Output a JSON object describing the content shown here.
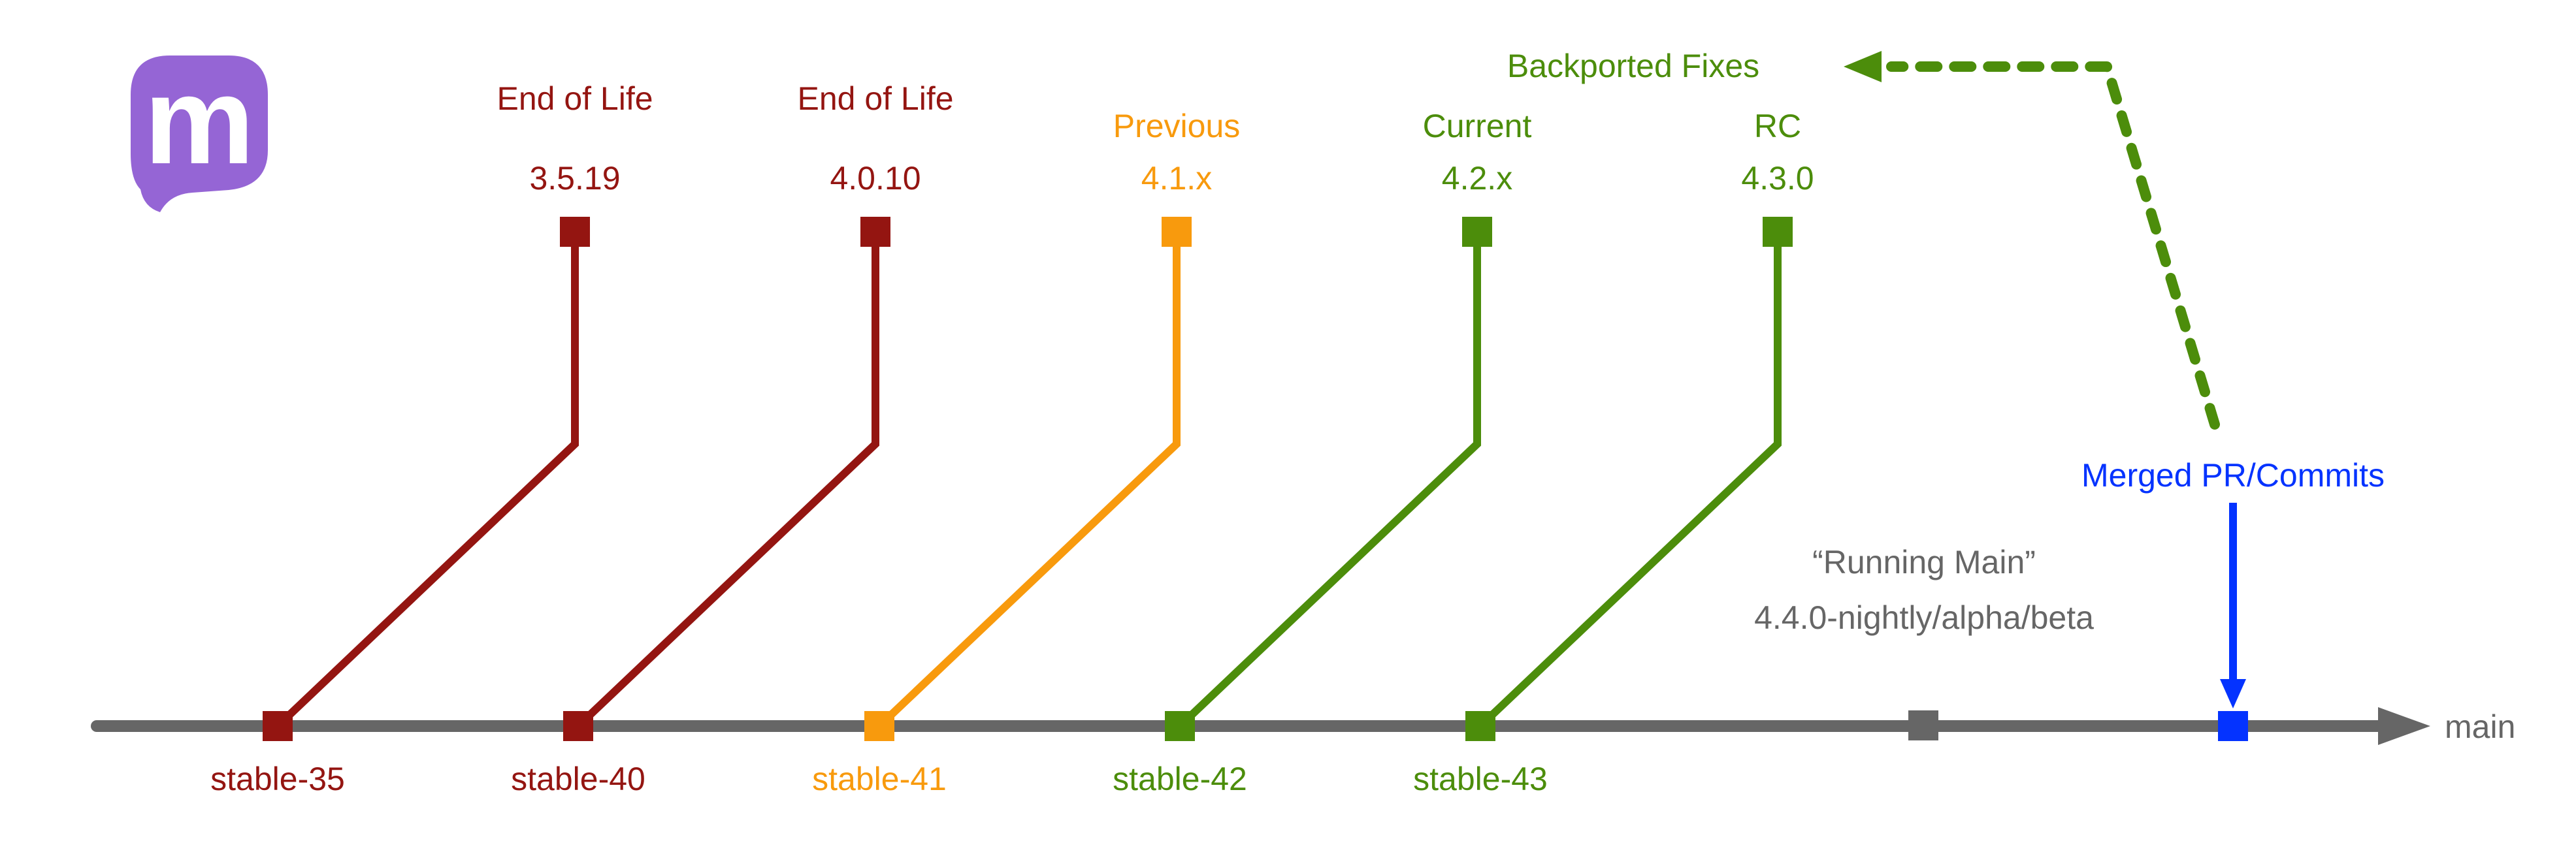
{
  "colors": {
    "eol": "#941511",
    "previous": "#F89A0D",
    "current": "#4C8D0B",
    "merged": "#0433FF",
    "main_line": "#666666",
    "nightly_text": "#666666",
    "logo": "#9565D5"
  },
  "logo": {
    "icon": "mastodon-logo-icon",
    "glyph": "m"
  },
  "main_branch": {
    "label": "main"
  },
  "branches": [
    {
      "id": "stable-35",
      "label": "stable-35",
      "status": "End of Life",
      "version": "3.5.19",
      "color_key": "eol"
    },
    {
      "id": "stable-40",
      "label": "stable-40",
      "status": "End of Life",
      "version": "4.0.10",
      "color_key": "eol"
    },
    {
      "id": "stable-41",
      "label": "stable-41",
      "status": "Previous",
      "version": "4.1.x",
      "color_key": "previous"
    },
    {
      "id": "stable-42",
      "label": "stable-42",
      "status": "Current",
      "version": "4.2.x",
      "color_key": "current"
    },
    {
      "id": "stable-43",
      "label": "stable-43",
      "status": "RC",
      "version": "4.3.0",
      "color_key": "current"
    }
  ],
  "running_main": {
    "title": "“Running Main”",
    "subtitle": "4.4.0-nightly/alpha/beta"
  },
  "merged": {
    "label": "Merged PR/Commits"
  },
  "backport": {
    "label": "Backported Fixes"
  }
}
